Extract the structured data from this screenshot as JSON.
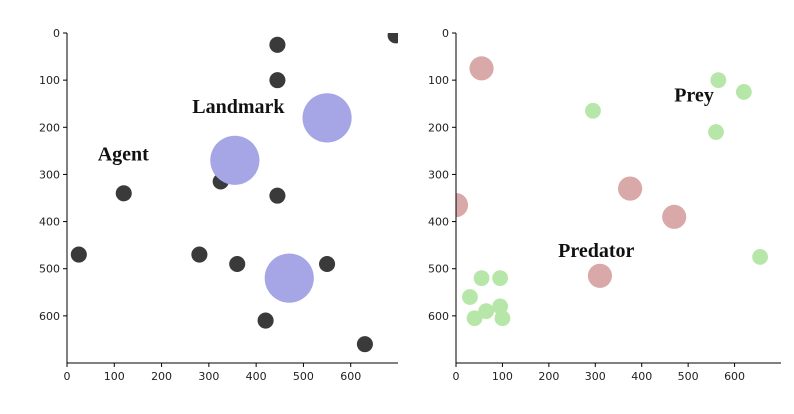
{
  "chart_data": [
    {
      "type": "scatter",
      "xlim": [
        0,
        700
      ],
      "ylim": [
        700,
        0
      ],
      "xticks": [
        0,
        100,
        200,
        300,
        400,
        500,
        600
      ],
      "yticks": [
        0,
        100,
        200,
        300,
        400,
        500,
        600
      ],
      "annotations": [
        {
          "text": "Agent",
          "x": 65,
          "y": 270
        },
        {
          "text": "Landmark",
          "x": 265,
          "y": 170
        }
      ],
      "series": [
        {
          "role": "agent",
          "color": "#3a3a3a",
          "radius": 17,
          "points": [
            [
              445,
              25
            ],
            [
              445,
              100
            ],
            [
              695,
              5
            ],
            [
              120,
              340
            ],
            [
              325,
              315
            ],
            [
              445,
              345
            ],
            [
              25,
              470
            ],
            [
              280,
              470
            ],
            [
              360,
              490
            ],
            [
              550,
              490
            ],
            [
              420,
              610
            ],
            [
              630,
              660
            ]
          ]
        },
        {
          "role": "landmark",
          "color": "#a6a6e6",
          "radius": 52,
          "points": [
            [
              550,
              180
            ],
            [
              355,
              270
            ],
            [
              470,
              520
            ]
          ]
        }
      ]
    },
    {
      "type": "scatter",
      "xlim": [
        0,
        700
      ],
      "ylim": [
        700,
        0
      ],
      "xticks": [
        0,
        100,
        200,
        300,
        400,
        500,
        600
      ],
      "yticks": [
        0,
        100,
        200,
        300,
        400,
        500,
        600
      ],
      "annotations": [
        {
          "text": "Prey",
          "x": 470,
          "y": 145
        },
        {
          "text": "Predator",
          "x": 220,
          "y": 475
        }
      ],
      "series": [
        {
          "role": "prey",
          "color": "#b6e6a8",
          "radius": 17,
          "points": [
            [
              565,
              100
            ],
            [
              620,
              125
            ],
            [
              295,
              165
            ],
            [
              560,
              210
            ],
            [
              655,
              475
            ],
            [
              55,
              520
            ],
            [
              95,
              520
            ],
            [
              30,
              560
            ],
            [
              65,
              590
            ],
            [
              95,
              580
            ],
            [
              40,
              605
            ],
            [
              100,
              605
            ]
          ]
        },
        {
          "role": "predator",
          "color": "#d9a8a8",
          "radius": 26,
          "points": [
            [
              55,
              75
            ],
            [
              375,
              330
            ],
            [
              470,
              390
            ],
            [
              310,
              515
            ],
            [
              0,
              365
            ]
          ]
        }
      ]
    }
  ]
}
